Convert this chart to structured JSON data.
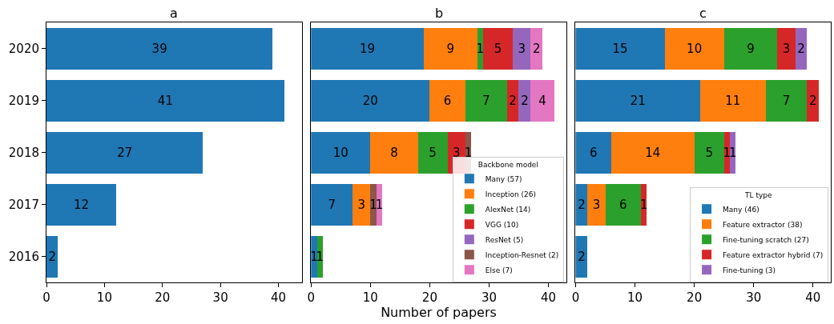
{
  "chart_data": [
    {
      "type": "bar",
      "title": "a",
      "orientation": "horizontal",
      "categories": [
        "2020",
        "2019",
        "2018",
        "2017",
        "2016"
      ],
      "xlim": [
        0,
        44
      ],
      "xticks": [
        0,
        10,
        20,
        30,
        40
      ],
      "data_labels": true,
      "series": [
        {
          "color": "#1f77b4",
          "values": [
            39,
            41,
            27,
            12,
            2
          ]
        }
      ]
    },
    {
      "type": "bar",
      "title": "b",
      "xlabel": "Number of papers",
      "orientation": "horizontal",
      "stacked": true,
      "categories": [
        "2020",
        "2019",
        "2018",
        "2017",
        "2016"
      ],
      "xlim": [
        0,
        43
      ],
      "xticks": [
        0,
        10,
        20,
        30,
        40
      ],
      "tick_labels": "x",
      "data_labels": true,
      "legend": "bottom right",
      "legend_title": "Backbone model",
      "series": [
        {
          "name": "Many (57)",
          "color": "#1f77b4",
          "values": [
            19,
            20,
            10,
            7,
            1
          ]
        },
        {
          "name": "Inception (26)",
          "color": "#ff7f0e",
          "values": [
            9,
            6,
            8,
            3,
            null
          ]
        },
        {
          "name": "AlexNet (14)",
          "color": "#2ca02c",
          "values": [
            1,
            7,
            5,
            null,
            1
          ]
        },
        {
          "name": "VGG (10)",
          "color": "#d62728",
          "values": [
            5,
            2,
            3,
            null,
            null
          ]
        },
        {
          "name": "ResNet (5)",
          "color": "#9467bd",
          "values": [
            3,
            2,
            null,
            null,
            null
          ]
        },
        {
          "name": "Inception-Resnet (2)",
          "color": "#8c564b",
          "values": [
            null,
            null,
            1,
            1,
            null
          ]
        },
        {
          "name": "Else (7)",
          "color": "#e377c2",
          "values": [
            2,
            4,
            null,
            1,
            null
          ]
        }
      ]
    },
    {
      "type": "bar",
      "title": "c",
      "orientation": "horizontal",
      "stacked": true,
      "categories": [
        "2020",
        "2019",
        "2018",
        "2017",
        "2016"
      ],
      "xlim": [
        0,
        43
      ],
      "xticks": [
        0,
        10,
        20,
        30,
        40
      ],
      "tick_labels": "x",
      "data_labels": true,
      "legend": "bottom right",
      "legend_title": "TL type",
      "series": [
        {
          "name": "Many (46)",
          "color": "#1f77b4",
          "values": [
            15,
            21,
            6,
            2,
            2
          ]
        },
        {
          "name": "Feature extractor (38)",
          "color": "#ff7f0e",
          "values": [
            10,
            11,
            14,
            3,
            null
          ]
        },
        {
          "name": "Fine-tuning scratch (27)",
          "color": "#2ca02c",
          "values": [
            9,
            7,
            5,
            6,
            null
          ]
        },
        {
          "name": "Feature extractor hybrid (7)",
          "color": "#d62728",
          "values": [
            3,
            2,
            1,
            1,
            null
          ]
        },
        {
          "name": "Fine-tuning (3)",
          "color": "#9467bd",
          "values": [
            2,
            null,
            1,
            null,
            null
          ]
        }
      ]
    }
  ]
}
